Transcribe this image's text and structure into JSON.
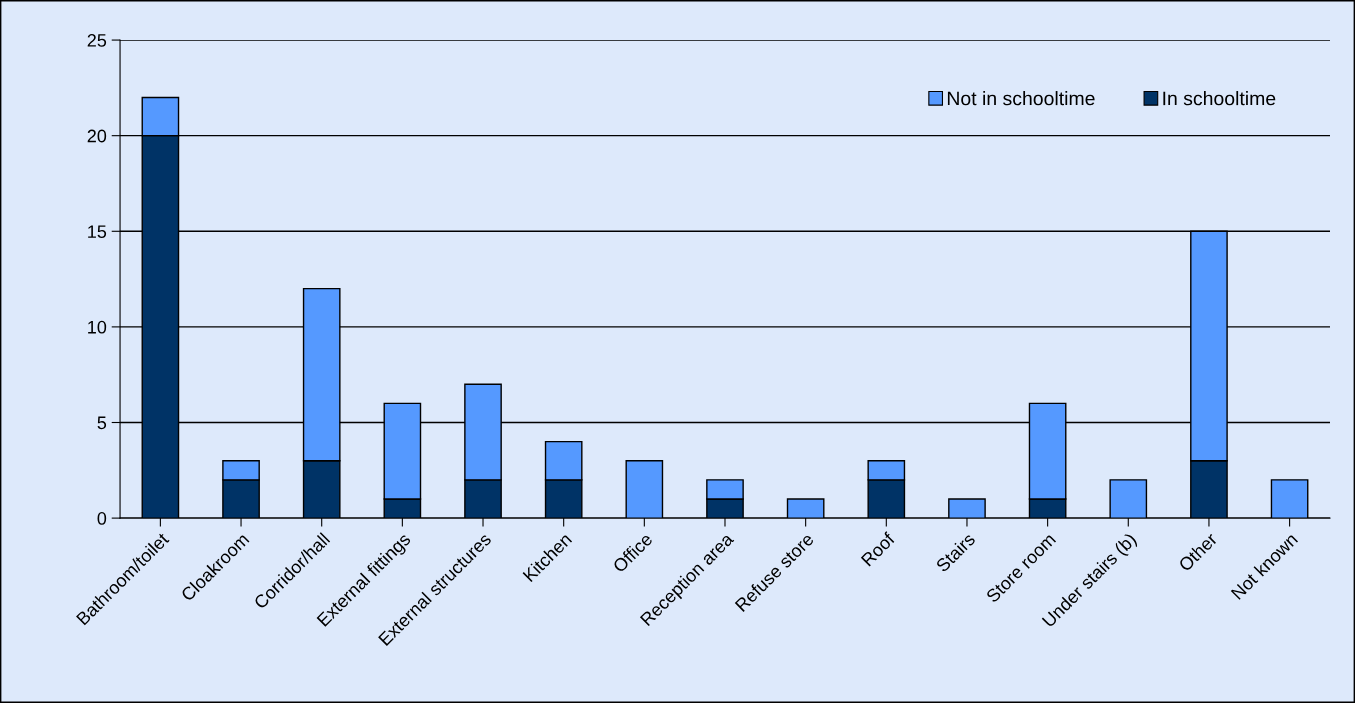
{
  "chart_data": {
    "type": "bar",
    "stacked": true,
    "categories": [
      "Bathroom/toilet",
      "Cloakroom",
      "Corridor/hall",
      "External fittings",
      "External structures",
      "Kitchen",
      "Office",
      "Reception area",
      "Refuse store",
      "Roof",
      "Stairs",
      "Store room",
      "Under stairs (b)",
      "Other",
      "Not known"
    ],
    "series": [
      {
        "name": "In schooltime",
        "color": "#003366",
        "values": [
          20,
          2,
          3,
          1,
          2,
          2,
          0,
          1,
          0,
          2,
          0,
          1,
          0,
          3,
          0
        ]
      },
      {
        "name": "Not in schooltime",
        "color": "#5599ff",
        "values": [
          2,
          1,
          9,
          5,
          5,
          2,
          3,
          1,
          1,
          1,
          1,
          5,
          2,
          12,
          2
        ]
      }
    ],
    "ylim": [
      0,
      25
    ],
    "yticks": [
      0,
      5,
      10,
      15,
      20,
      25
    ],
    "grid": "y",
    "legend": "top right"
  }
}
